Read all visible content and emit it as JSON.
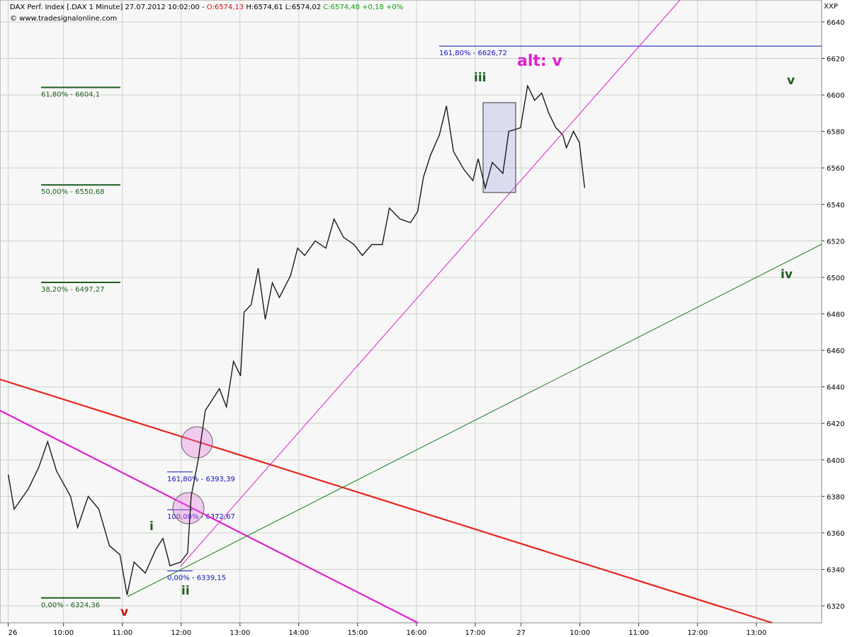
{
  "chart_data": {
    "type": "line",
    "header": {
      "main": "DAX Perf. Index [.DAX  1 Minute] 27.07.2012 10:02:00 -",
      "open": "O:6574,13",
      "highlow": "H:6574,61 L:6574,02",
      "close": "C:6574,48 +0,18 +0%"
    },
    "source": "© www.tradesignalonline.com",
    "corner": "XXP",
    "series": [
      {
        "name": "DAX",
        "color": "#1a1a1a",
        "x": [
          9.06,
          9.16,
          9.4,
          9.58,
          9.73,
          9.88,
          10.12,
          10.24,
          10.42,
          10.6,
          10.78,
          10.96,
          11.08,
          11.2,
          11.39,
          11.57,
          11.69,
          11.81,
          11.99,
          12.11,
          12.17,
          12.29,
          12.41,
          12.53,
          12.65,
          12.77,
          12.89,
          13.01,
          13.07,
          13.19,
          13.31,
          13.43,
          13.55,
          13.67,
          13.86,
          13.98,
          14.1,
          14.28,
          14.46,
          14.6,
          14.76,
          14.94,
          15.08,
          15.24,
          15.42,
          15.54,
          15.72,
          15.9,
          16.02,
          16.12,
          16.24,
          16.39,
          16.51,
          16.63,
          16.81,
          16.96,
          17.05,
          17.17,
          17.29,
          17.47,
          17.57,
          17.77,
          17.89,
          18.01,
          18.13,
          18.25,
          18.37,
          18.49,
          18.55,
          18.67,
          18.77,
          18.86
        ],
        "values": [
          6392,
          6373,
          6384,
          6396,
          6410,
          6394,
          6380,
          6363,
          6380,
          6373,
          6353,
          6348,
          6326,
          6344,
          6338,
          6351,
          6357,
          6342,
          6344,
          6349,
          6380,
          6400,
          6427,
          6433,
          6439,
          6429,
          6454,
          6446,
          6481,
          6485,
          6505,
          6477,
          6497,
          6489,
          6501,
          6516,
          6512,
          6520,
          6516,
          6532,
          6522,
          6518,
          6512,
          6518,
          6518,
          6538,
          6532,
          6530,
          6536,
          6555,
          6567,
          6578,
          6594,
          6569,
          6559,
          6553,
          6565,
          6549,
          6563,
          6557,
          6580,
          6582,
          6605,
          6597,
          6601,
          6590,
          6582,
          6578,
          6571,
          6580,
          6574,
          6549
        ]
      }
    ],
    "fib_green": [
      {
        "text": "61,80% - 6604,1",
        "value": 6604.1
      },
      {
        "text": "50,00% - 6550,68",
        "value": 6550.68
      },
      {
        "text": "38,20% - 6497,27",
        "value": 6497.27
      },
      {
        "text": "0,00% - 6324,36",
        "value": 6324.36
      }
    ],
    "fib_blue": [
      {
        "text": "161,80% - 6626,72",
        "value": 6626.72
      },
      {
        "text": "161,80% - 6393,39",
        "value": 6393.39
      },
      {
        "text": "100,00% - 6372,67",
        "value": 6372.67
      },
      {
        "text": "0,00% - 6339,15",
        "value": 6339.15
      }
    ],
    "waves": [
      "v",
      "i",
      "ii",
      "iii",
      "alt: v",
      "v",
      "iv"
    ],
    "xlim": [
      8.92,
      22.89
    ],
    "xticks": [
      {
        "value": 9.06,
        "label": "26"
      },
      {
        "value": 10,
        "label": "10:00"
      },
      {
        "value": 11,
        "label": "11:00"
      },
      {
        "value": 12,
        "label": "12:00"
      },
      {
        "value": 13,
        "label": "13:00"
      },
      {
        "value": 14,
        "label": "14:00"
      },
      {
        "value": 15,
        "label": "15:00"
      },
      {
        "value": 16,
        "label": "16:00"
      },
      {
        "value": 17,
        "label": "17:00"
      },
      {
        "value": 17.78,
        "label": "27"
      },
      {
        "value": 18.78,
        "label": "10:00"
      },
      {
        "value": 19.78,
        "label": "11:00"
      },
      {
        "value": 20.78,
        "label": "12:00"
      },
      {
        "value": 21.78,
        "label": "13:00"
      }
    ],
    "ylim": [
      6310.7,
      6652
    ],
    "yticks": [
      6320,
      6340,
      6360,
      6380,
      6400,
      6420,
      6440,
      6460,
      6480,
      6500,
      6520,
      6540,
      6560,
      6580,
      6600,
      6620,
      6640
    ],
    "grid": true
  }
}
